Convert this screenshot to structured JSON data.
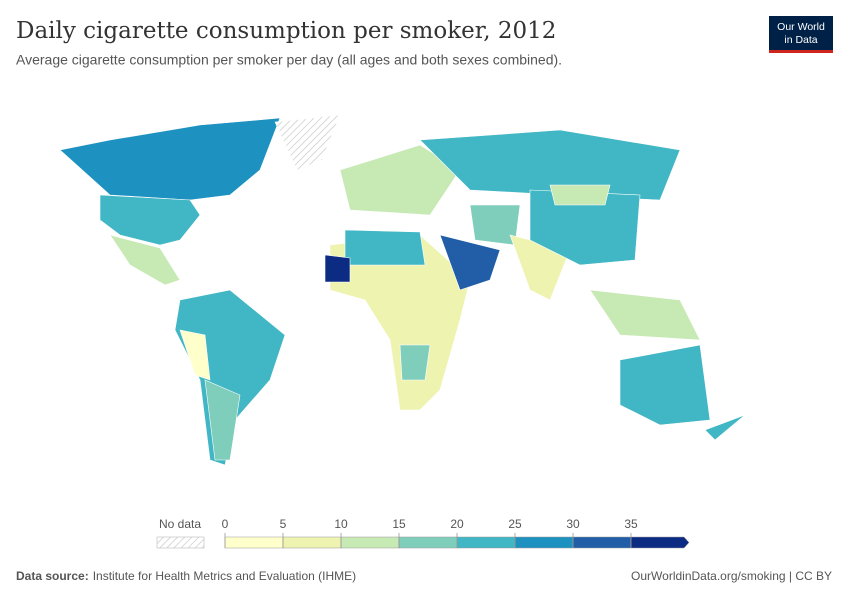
{
  "header": {
    "title": "Daily cigarette consumption per smoker, 2012",
    "subtitle": "Average cigarette consumption per smoker per day (all ages and both sexes combined).",
    "logo": [
      "Our World",
      "in Data"
    ]
  },
  "legend": {
    "no_data_label": "No data",
    "ticks": [
      0,
      5,
      10,
      15,
      20,
      25,
      30,
      35
    ],
    "colors": [
      "#ffffcc",
      "#eef3b0",
      "#c7e9b4",
      "#7fcdbb",
      "#41b6c4",
      "#1d91c0",
      "#225ea8",
      "#0c2c84"
    ]
  },
  "footer": {
    "source_label": "Data source:",
    "source": "Institute for Health Metrics and Evaluation (IHME)",
    "link": "OurWorldinData.org/smoking | CC BY"
  }
}
